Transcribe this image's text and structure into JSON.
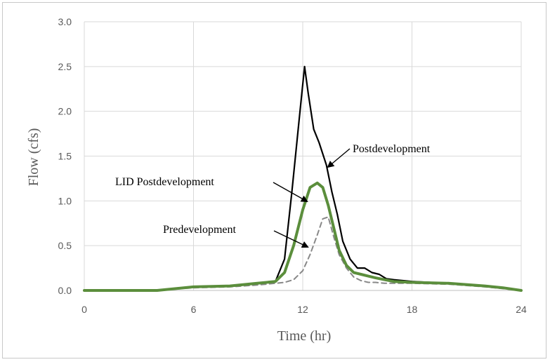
{
  "chart_data": {
    "type": "line",
    "xlabel": "Time (hr)",
    "ylabel": "Flow (cfs)",
    "xlim": [
      0,
      24
    ],
    "ylim": [
      0,
      3.0
    ],
    "xticks": [
      0,
      6,
      12,
      18,
      24
    ],
    "xtick_labels": [
      "0",
      "6",
      "12",
      "18",
      "24"
    ],
    "yticks": [
      0,
      0.5,
      1.0,
      1.5,
      2.0,
      2.5,
      3.0
    ],
    "ytick_labels": [
      "0.0",
      "0.5",
      "1.0",
      "1.5",
      "2.0",
      "2.5",
      "3.0"
    ],
    "grid": true,
    "series": [
      {
        "name": "Postdevelopment",
        "color": "#000000",
        "style": "solid",
        "x": [
          0,
          4,
          6,
          8,
          9.5,
          10.5,
          11,
          11.4,
          11.8,
          12.1,
          12.3,
          12.6,
          12.9,
          13.3,
          13.6,
          13.9,
          14.2,
          14.6,
          15.0,
          15.4,
          15.8,
          16.2,
          16.6,
          17.0,
          18.0,
          20.0,
          22.0,
          23.0,
          24.0
        ],
        "y": [
          0,
          0.0,
          0.04,
          0.05,
          0.08,
          0.1,
          0.35,
          1.1,
          1.9,
          2.5,
          2.2,
          1.8,
          1.65,
          1.4,
          1.1,
          0.85,
          0.55,
          0.35,
          0.25,
          0.25,
          0.2,
          0.18,
          0.13,
          0.12,
          0.1,
          0.08,
          0.05,
          0.03,
          0.0
        ]
      },
      {
        "name": "LID Postdevelopment",
        "color": "#5b8e3c",
        "style": "solid",
        "x": [
          0,
          4,
          6,
          8,
          9.5,
          10.5,
          11.0,
          11.5,
          12.0,
          12.4,
          12.8,
          13.1,
          13.4,
          13.7,
          14.0,
          14.4,
          14.8,
          15.2,
          15.6,
          16.0,
          16.5,
          17.0,
          18.0,
          20.0,
          22.0,
          23.0,
          24.0
        ],
        "y": [
          0,
          0.0,
          0.04,
          0.05,
          0.08,
          0.1,
          0.2,
          0.5,
          0.9,
          1.15,
          1.2,
          1.15,
          0.95,
          0.7,
          0.45,
          0.28,
          0.2,
          0.18,
          0.16,
          0.14,
          0.12,
          0.1,
          0.09,
          0.08,
          0.05,
          0.03,
          0.0
        ]
      },
      {
        "name": "Predevelopment",
        "color": "#888888",
        "style": "dashed",
        "x": [
          0,
          4,
          6,
          8,
          9.5,
          10.5,
          11.0,
          11.5,
          12.0,
          12.4,
          12.8,
          13.1,
          13.4,
          13.7,
          14.0,
          14.4,
          14.8,
          15.2,
          15.6,
          16.0,
          16.5,
          17.0,
          18.0,
          20.0,
          22.0,
          23.0,
          24.0
        ],
        "y": [
          0,
          0.0,
          0.03,
          0.04,
          0.06,
          0.08,
          0.09,
          0.12,
          0.22,
          0.4,
          0.62,
          0.8,
          0.82,
          0.6,
          0.4,
          0.25,
          0.15,
          0.11,
          0.09,
          0.09,
          0.08,
          0.08,
          0.08,
          0.07,
          0.04,
          0.02,
          0.0
        ]
      }
    ],
    "annotations": [
      {
        "text": "Postdevelopment"
      },
      {
        "text": "LID Postdevelopment"
      },
      {
        "text": "Predevelopment"
      }
    ]
  }
}
